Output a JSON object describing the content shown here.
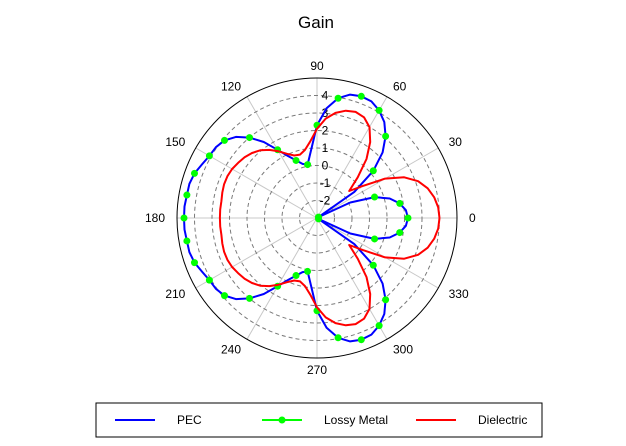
{
  "chart_data": {
    "type": "polar-line",
    "title": "Gain",
    "angle_unit": "degrees",
    "angle_ticks": [
      0,
      30,
      60,
      90,
      120,
      150,
      180,
      210,
      240,
      270,
      300,
      330
    ],
    "radial_ticks": [
      -2,
      -1,
      0,
      1,
      2,
      3,
      4
    ],
    "radial_range": [
      -3,
      5
    ],
    "grid": true,
    "legend_position": "bottom",
    "series": [
      {
        "name": "PEC",
        "color": "#0000ff",
        "marker": "none",
        "theta": [
          0,
          5,
          10,
          15,
          20,
          25,
          30,
          35,
          40,
          45,
          50,
          55,
          60,
          65,
          70,
          75,
          80,
          85,
          90,
          95,
          100,
          105,
          110,
          115,
          120,
          125,
          130,
          135,
          140,
          145,
          150,
          155,
          160,
          165,
          170,
          175,
          180,
          185,
          190,
          195,
          200,
          205,
          210,
          215,
          220,
          225,
          230,
          235,
          240,
          245,
          250,
          255,
          260,
          265,
          270,
          275,
          280,
          285,
          290,
          295,
          300,
          305,
          310,
          315,
          320,
          325,
          330,
          335,
          340,
          345,
          350,
          355,
          360
        ],
        "r": [
          2.2,
          2.1,
          1.8,
          1.3,
          0.5,
          -0.9,
          -2.9,
          -0.4,
          1.2,
          2.3,
          3.1,
          3.7,
          4.1,
          4.35,
          4.4,
          4.3,
          3.95,
          3.3,
          2.3,
          0.9,
          0.1,
          0.2,
          0.5,
          0.9,
          1.5,
          2.3,
          3.0,
          3.55,
          3.9,
          4.05,
          4.1,
          4.25,
          4.45,
          4.55,
          4.55,
          4.6,
          4.6,
          4.6,
          4.55,
          4.55,
          4.45,
          4.25,
          4.1,
          4.05,
          3.9,
          3.55,
          3.0,
          2.3,
          1.5,
          0.9,
          0.5,
          0.2,
          0.1,
          0.9,
          2.3,
          3.3,
          3.95,
          4.3,
          4.4,
          4.35,
          4.1,
          3.7,
          3.1,
          2.3,
          1.2,
          -0.4,
          -2.9,
          -0.9,
          0.5,
          1.3,
          1.8,
          2.1,
          2.2
        ]
      },
      {
        "name": "Lossy Metal",
        "color": "#00ff00",
        "marker": "circle",
        "theta": [
          0,
          10,
          20,
          30,
          40,
          50,
          60,
          70,
          80,
          90,
          100,
          110,
          120,
          130,
          140,
          150,
          160,
          170,
          180,
          190,
          200,
          210,
          220,
          230,
          240,
          250,
          260,
          270,
          280,
          290,
          300,
          310,
          320,
          330,
          340,
          350
        ],
        "r": [
          2.2,
          1.8,
          0.5,
          -2.9,
          1.2,
          3.1,
          4.1,
          4.4,
          3.95,
          2.3,
          0.1,
          0.5,
          1.5,
          3.0,
          3.9,
          4.1,
          4.45,
          4.55,
          4.6,
          4.55,
          4.45,
          4.1,
          3.9,
          3.0,
          1.5,
          0.5,
          0.1,
          2.3,
          3.95,
          4.4,
          4.1,
          3.1,
          1.2,
          -2.9,
          0.5,
          1.8
        ]
      },
      {
        "name": "Dielectric",
        "color": "#ff0000",
        "marker": "none",
        "theta": [
          0,
          5,
          10,
          15,
          20,
          25,
          30,
          35,
          40,
          45,
          50,
          55,
          60,
          65,
          70,
          75,
          80,
          85,
          90,
          95,
          100,
          105,
          110,
          115,
          120,
          125,
          130,
          135,
          140,
          145,
          150,
          155,
          160,
          165,
          170,
          175,
          180,
          185,
          190,
          195,
          200,
          205,
          210,
          215,
          220,
          225,
          230,
          235,
          240,
          245,
          250,
          255,
          260,
          265,
          270,
          275,
          280,
          285,
          290,
          295,
          300,
          305,
          310,
          315,
          320,
          325,
          330,
          335,
          340,
          345,
          350,
          355,
          360
        ],
        "r": [
          4.0,
          3.95,
          3.8,
          3.55,
          3.15,
          2.5,
          1.5,
          0.2,
          -0.6,
          0.3,
          1.4,
          2.3,
          3.0,
          3.35,
          3.45,
          3.35,
          3.1,
          2.7,
          2.1,
          1.4,
          0.95,
          0.75,
          0.8,
          1.05,
          1.4,
          1.75,
          2.05,
          2.25,
          2.4,
          2.5,
          2.6,
          2.65,
          2.65,
          2.6,
          2.55,
          2.55,
          2.55,
          2.55,
          2.55,
          2.6,
          2.65,
          2.65,
          2.6,
          2.5,
          2.4,
          2.25,
          2.05,
          1.75,
          1.4,
          1.05,
          0.8,
          0.75,
          0.95,
          1.4,
          2.1,
          2.7,
          3.1,
          3.35,
          3.45,
          3.35,
          3.0,
          2.3,
          1.4,
          0.3,
          -0.6,
          0.2,
          1.5,
          2.5,
          3.15,
          3.55,
          3.8,
          3.95,
          4.0
        ]
      }
    ]
  }
}
